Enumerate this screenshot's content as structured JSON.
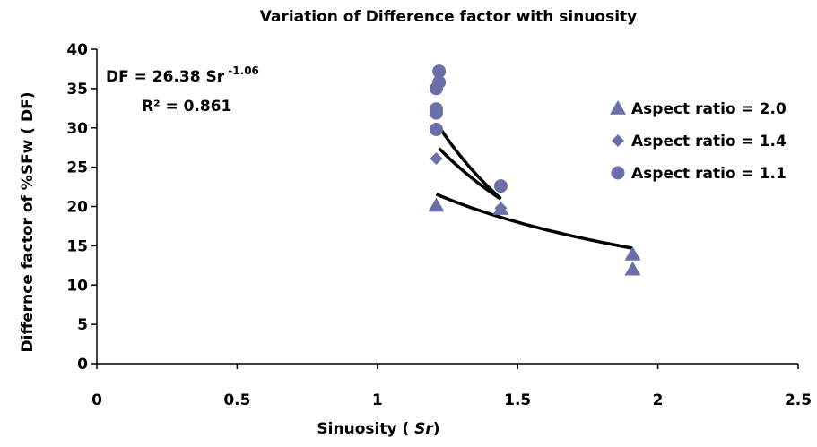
{
  "chart_data": {
    "type": "scatter",
    "title": "Variation of Difference factor with sinuosity",
    "xlabel_main": "Sinuosity ( ",
    "xlabel_italic": "Sr",
    "xlabel_end": ")",
    "ylabel": "Differnce factor of %SFw  ( DF)",
    "xlim": [
      0,
      2.5
    ],
    "ylim": [
      0,
      40
    ],
    "x_ticks": [
      "0",
      "0.5",
      "1",
      "1.5",
      "2",
      "2.5"
    ],
    "x_tick_values": [
      0,
      0.5,
      1,
      1.5,
      2,
      2.5
    ],
    "y_ticks": [
      "0",
      "5",
      "10",
      "15",
      "20",
      "25",
      "30",
      "35",
      "40"
    ],
    "y_tick_values": [
      0,
      5,
      10,
      15,
      20,
      25,
      30,
      35,
      40
    ],
    "grid": false,
    "legend_position": "right",
    "equation": {
      "line1_base": "DF = 26.38 Sr",
      "line1_exp": " -1.06",
      "line2": "R² = 0.861"
    },
    "series": [
      {
        "name": "Aspect ratio  = 2.0",
        "marker": "triangle",
        "color": "#6B6FA8",
        "points": [
          [
            1.21,
            20.1
          ],
          [
            1.44,
            19.7
          ],
          [
            1.91,
            13.9
          ],
          [
            1.91,
            12.0
          ]
        ]
      },
      {
        "name": "Aspect ratio  = 1.4",
        "marker": "diamond",
        "color": "#6B6FA8",
        "points": [
          [
            1.21,
            26.1
          ],
          [
            1.44,
            19.8
          ]
        ]
      },
      {
        "name": "Aspect ratio = 1.1",
        "marker": "circle",
        "color": "#6B6FA8",
        "points": [
          [
            1.22,
            37.2
          ],
          [
            1.22,
            35.8
          ],
          [
            1.21,
            35.0
          ],
          [
            1.21,
            32.4
          ],
          [
            1.21,
            31.9
          ],
          [
            1.21,
            29.8
          ],
          [
            1.44,
            22.6
          ]
        ]
      }
    ],
    "trendlines": [
      {
        "x_start": 1.21,
        "x_end": 1.91,
        "a": 25.3,
        "b": -0.84
      },
      {
        "x_start": 1.22,
        "x_end": 1.44,
        "a": 37.8,
        "b": -1.62
      },
      {
        "x_start": 1.22,
        "x_end": 1.44,
        "a": 46.5,
        "b": -2.18
      }
    ]
  }
}
